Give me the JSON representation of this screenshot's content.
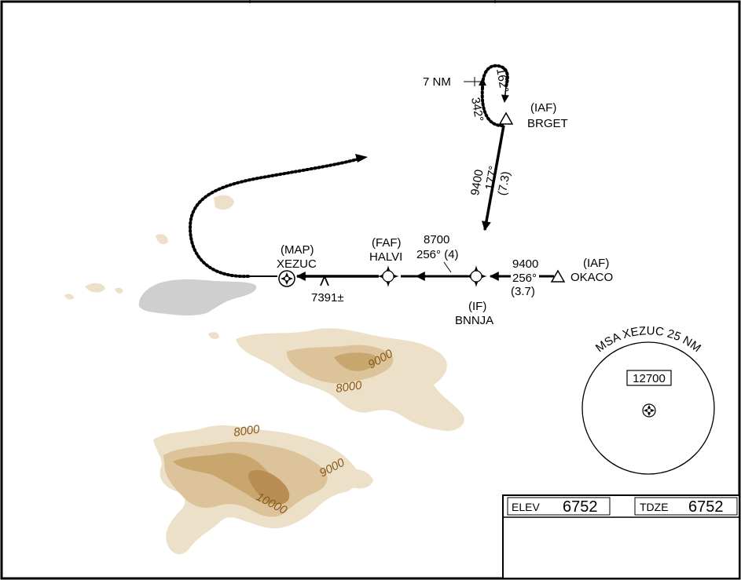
{
  "fixes": {
    "brget": {
      "role": "(IAF)",
      "name": "BRGET"
    },
    "okaco": {
      "role": "(IAF)",
      "name": "OKACO"
    },
    "bnnja": {
      "role": "(IF)",
      "name": "BNNJA"
    },
    "halvi": {
      "role": "(FAF)",
      "name": "HALVI"
    },
    "xezuc": {
      "role": "(MAP)",
      "name": "XEZUC"
    }
  },
  "holding": {
    "leg_length": "7 NM",
    "inbound_course": "162°",
    "outbound_course": "342°"
  },
  "segments": {
    "brget_to_bnnja": {
      "altitude": "9400",
      "course": "177°",
      "distance": "(7.3)"
    },
    "okaco_to_bnnja": {
      "altitude": "9400",
      "course": "256°",
      "distance": "(3.7)"
    },
    "bnnja_to_halvi": {
      "altitude": "8700",
      "course_distance": "256° (4)"
    }
  },
  "obstacle": {
    "elevation": "7391±"
  },
  "terrain_contours": [
    "9000",
    "8000",
    "8000",
    "9000",
    "10000"
  ],
  "msa": {
    "title": "MSA XEZUC 25 NM",
    "altitude": "12700"
  },
  "info_box": {
    "elev_label": "ELEV",
    "elev_value": "6752",
    "tdze_label": "TDZE",
    "tdze_value": "6752"
  },
  "colors": {
    "terrain_light": "#ede0c8",
    "terrain_mid": "#dcc39a",
    "terrain_dark": "#c9a66e",
    "terrain_darkest": "#b98d53",
    "water": "#cfcfcf",
    "contour_text": "#8a5a1c"
  }
}
